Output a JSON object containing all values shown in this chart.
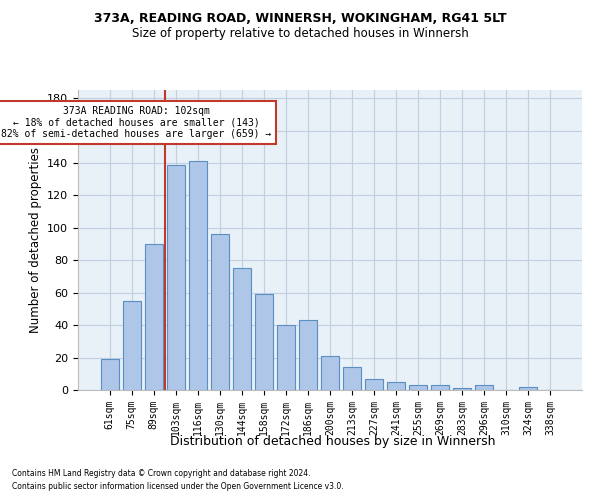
{
  "title1": "373A, READING ROAD, WINNERSH, WOKINGHAM, RG41 5LT",
  "title2": "Size of property relative to detached houses in Winnersh",
  "xlabel": "Distribution of detached houses by size in Winnersh",
  "ylabel": "Number of detached properties",
  "footnote1": "Contains HM Land Registry data © Crown copyright and database right 2024.",
  "footnote2": "Contains public sector information licensed under the Open Government Licence v3.0.",
  "categories": [
    "61sqm",
    "75sqm",
    "89sqm",
    "103sqm",
    "116sqm",
    "130sqm",
    "144sqm",
    "158sqm",
    "172sqm",
    "186sqm",
    "200sqm",
    "213sqm",
    "227sqm",
    "241sqm",
    "255sqm",
    "269sqm",
    "283sqm",
    "296sqm",
    "310sqm",
    "324sqm",
    "338sqm"
  ],
  "values": [
    19,
    55,
    90,
    139,
    141,
    96,
    75,
    59,
    40,
    43,
    21,
    14,
    7,
    5,
    3,
    3,
    1,
    3,
    0,
    2,
    0
  ],
  "bar_color": "#aec6e8",
  "bar_edgecolor": "#5a8fc2",
  "grid_color": "#c0d0e0",
  "vline_color": "#c0392b",
  "annotation_title": "373A READING ROAD: 102sqm",
  "annotation_line1": "← 18% of detached houses are smaller (143)",
  "annotation_line2": "82% of semi-detached houses are larger (659) →",
  "annotation_box_color": "#c0392b",
  "ylim": [
    0,
    185
  ],
  "yticks": [
    0,
    20,
    40,
    60,
    80,
    100,
    120,
    140,
    160,
    180
  ],
  "bar_width": 0.8,
  "figsize": [
    6.0,
    5.0
  ],
  "dpi": 100
}
